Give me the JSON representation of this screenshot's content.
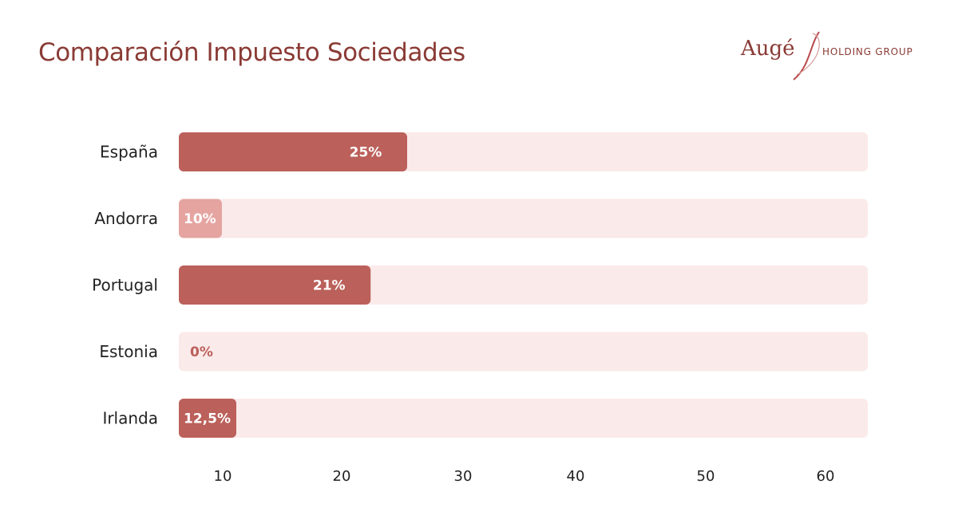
{
  "title": "Comparación Impuesto Sociedades",
  "logo": {
    "name": "Augé",
    "subtitle": "HOLDING GROUP"
  },
  "colors": {
    "bar": "#bb605a",
    "bar_light": "#e5a4a0",
    "track": "#fbeaea",
    "title": "#8a3b35"
  },
  "chart_data": {
    "type": "bar",
    "orientation": "horizontal",
    "categories": [
      "España",
      "Andorra",
      "Portugal",
      "Estonia",
      "Irlanda"
    ],
    "values": [
      25,
      10,
      21,
      0,
      12.5
    ],
    "value_labels": [
      "25%",
      "10%",
      "21%",
      "0%",
      "12,5%"
    ],
    "bar_colors": [
      "#bb605a",
      "#e5a4a0",
      "#bb605a",
      "#bb605a",
      "#bb605a"
    ],
    "x_ticks": [
      "10",
      "20",
      "30",
      "40",
      "50",
      "60"
    ],
    "xlim": [
      5,
      65
    ],
    "title": "Comparación Impuesto Sociedades",
    "grid": false
  }
}
